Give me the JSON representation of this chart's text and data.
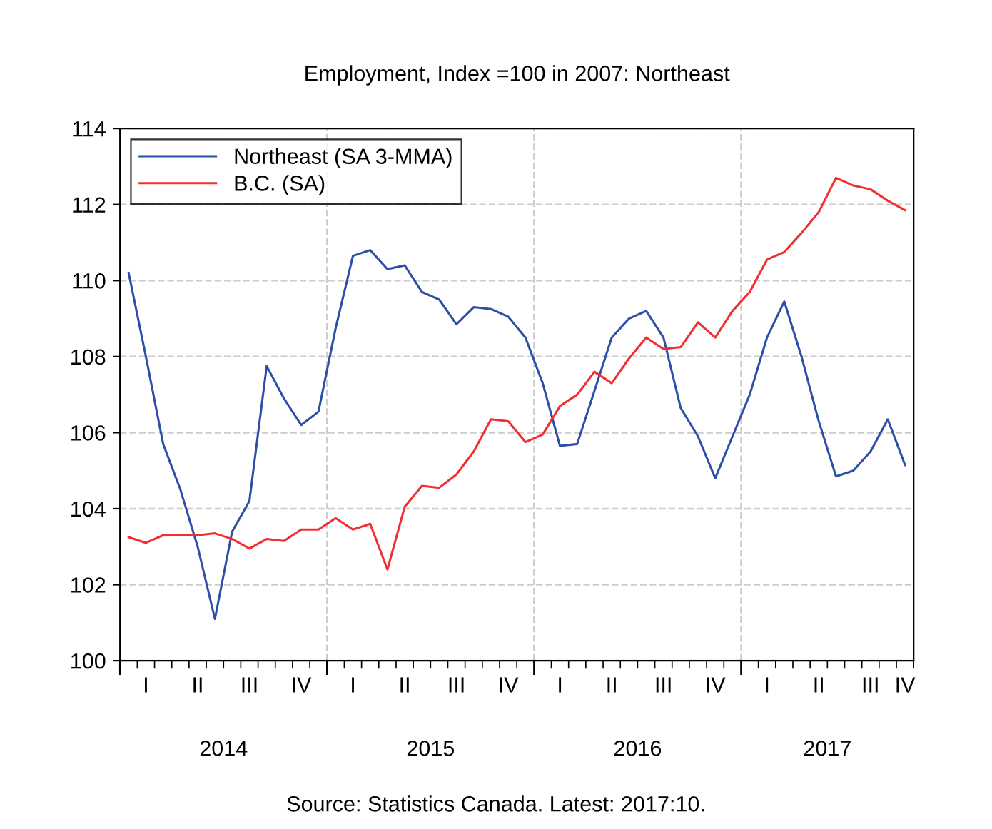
{
  "chart_data": {
    "type": "line",
    "title": "Employment, Index =100 in 2007: Northeast",
    "categories": [
      null,
      "I",
      null,
      null,
      "II",
      null,
      null,
      "III",
      null,
      null,
      "IV",
      null,
      null,
      "I",
      null,
      null,
      "II",
      null,
      null,
      "III",
      null,
      null,
      "IV",
      null,
      null,
      "I",
      null,
      null,
      "II",
      null,
      null,
      "III",
      null,
      null,
      "IV",
      null,
      null,
      "I",
      null,
      null,
      "II",
      null,
      null,
      "III",
      null,
      "IV"
    ],
    "series": [
      {
        "name": "Northeast (SA 3-MMA)",
        "color": "#2e4fa8",
        "values": [
          110.2,
          108.0,
          105.7,
          104.5,
          103.0,
          101.1,
          103.4,
          104.2,
          107.75,
          106.9,
          106.2,
          106.55,
          108.75,
          110.65,
          110.8,
          110.3,
          110.4,
          109.7,
          109.5,
          108.85,
          109.3,
          109.25,
          109.05,
          108.5,
          107.3,
          105.65,
          105.7,
          107.1,
          108.5,
          109.0,
          109.2,
          108.5,
          106.65,
          105.9,
          104.8,
          105.9,
          107.0,
          108.5,
          109.45,
          108.0,
          106.3,
          104.85,
          105.0,
          105.5,
          106.35,
          105.15
        ]
      },
      {
        "name": "B.C. (SA)",
        "color": "#f03030",
        "values": [
          103.25,
          103.1,
          103.3,
          103.3,
          103.3,
          103.35,
          103.2,
          102.95,
          103.2,
          103.15,
          103.45,
          103.45,
          103.75,
          103.45,
          103.6,
          102.4,
          104.05,
          104.6,
          104.55,
          104.9,
          105.5,
          106.35,
          106.3,
          105.75,
          105.95,
          106.7,
          107.0,
          107.6,
          107.3,
          107.95,
          108.5,
          108.2,
          108.25,
          108.9,
          108.5,
          109.2,
          109.7,
          110.55,
          110.75,
          111.25,
          111.8,
          112.7,
          112.5,
          112.4,
          112.1,
          111.85
        ]
      }
    ],
    "ylim": [
      100,
      114
    ],
    "yticks": [
      100,
      102,
      104,
      106,
      108,
      110,
      112,
      114
    ],
    "grid": true,
    "legend": "top left",
    "line_style": "solid",
    "marker": "none",
    "annotations": [
      "2014",
      "2015",
      "2016",
      "2017",
      "Source: Statistics Canada. Latest: 2017:10."
    ]
  }
}
